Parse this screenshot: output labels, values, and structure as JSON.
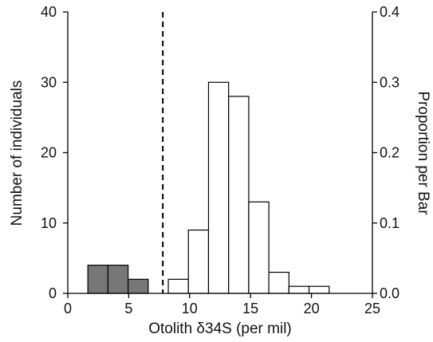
{
  "chart_data": {
    "type": "bar",
    "subtype": "histogram",
    "xlabel": "Otolith δ34S (per mil)",
    "ylabel_left": "Number of individuals",
    "ylabel_right": "Proportion per Bar",
    "xlim": [
      0,
      25
    ],
    "ylim_left": [
      0,
      40
    ],
    "ylim_right": [
      0.0,
      0.4
    ],
    "x_ticks": [
      "0",
      "5",
      "10",
      "15",
      "20",
      "25"
    ],
    "y_left_ticks": [
      "0",
      "10",
      "20",
      "30",
      "40"
    ],
    "y_right_ticks": [
      "0.0",
      "0.1",
      "0.2",
      "0.3",
      "0.4"
    ],
    "bin_width": 1.65,
    "threshold_x": 7.8,
    "grid": false,
    "series": [
      {
        "group": "left-of-threshold",
        "color": "#777777",
        "bins": [
          {
            "x0": 1.65,
            "x1": 3.3,
            "count": 4
          },
          {
            "x0": 3.3,
            "x1": 4.95,
            "count": 4
          },
          {
            "x0": 4.95,
            "x1": 6.6,
            "count": 2
          }
        ]
      },
      {
        "group": "right-of-threshold",
        "color": "#ffffff",
        "bins": [
          {
            "x0": 8.25,
            "x1": 9.9,
            "count": 2
          },
          {
            "x0": 9.9,
            "x1": 11.55,
            "count": 9
          },
          {
            "x0": 11.55,
            "x1": 13.2,
            "count": 30
          },
          {
            "x0": 13.2,
            "x1": 14.85,
            "count": 28
          },
          {
            "x0": 14.85,
            "x1": 16.5,
            "count": 13
          },
          {
            "x0": 16.5,
            "x1": 18.15,
            "count": 3
          },
          {
            "x0": 18.15,
            "x1": 19.8,
            "count": 1
          },
          {
            "x0": 19.8,
            "x1": 21.45,
            "count": 1
          }
        ]
      }
    ]
  }
}
